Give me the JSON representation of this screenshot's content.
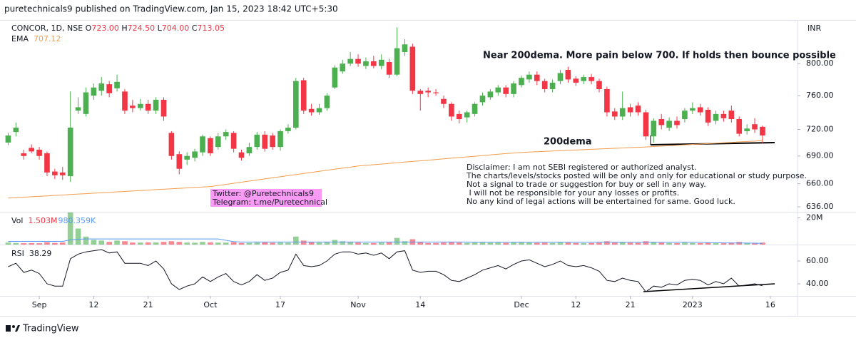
{
  "header": "puretechnicals9 published on TradingView.com, Jan 15, 2023 18:42 UTC+5:30",
  "footer": "TradingView",
  "currency": "INR",
  "annotations": {
    "note": "Near 200dema. More pain below 700. If holds then bounce possible",
    "ema_label": "200dema",
    "disclaimer": [
      "Disclaimer: I am not SEBI registered or authorized analyst.",
      "The charts/levels/stocks posted will be only and only for educational or study purpose.",
      "Not a signal to trade or suggestion for buy or sell in any way.",
      " I will not be responsible for your any losses or profits.",
      "No any kind of legal actions will be entertained for same. Good luck."
    ],
    "social": [
      "Twitter: @Puretechnicals9",
      "Telegram: t.me/Puretechnical"
    ]
  },
  "chart_data": [
    {
      "type": "candlestick",
      "title": "CONCOR, 1D, NSE",
      "ohlc_labels": [
        {
          "key": "O",
          "value": "723.00"
        },
        {
          "key": "H",
          "value": "724.50"
        },
        {
          "key": "L",
          "value": "704.00"
        },
        {
          "key": "C",
          "value": "713.05"
        }
      ],
      "up_color": "#4caf50",
      "down_color": "#f23645",
      "log": true,
      "grid": false,
      "ylim": [
        631,
        856
      ],
      "yticks": [
        {
          "value": 800,
          "label": "800.00"
        },
        {
          "value": 760,
          "label": "760.00"
        },
        {
          "value": 720,
          "label": "720.00"
        },
        {
          "value": 690,
          "label": "690.00"
        },
        {
          "value": 660,
          "label": "660.00"
        },
        {
          "value": 636,
          "label": "636.00"
        }
      ],
      "xlim": [
        -1.05,
        101.5
      ],
      "xticks": [
        {
          "value": 4,
          "label": "Sep"
        },
        {
          "value": 11,
          "label": "12"
        },
        {
          "value": 18,
          "label": "21"
        },
        {
          "value": 26,
          "label": "Oct"
        },
        {
          "value": 35,
          "label": "17"
        },
        {
          "value": 45,
          "label": "Nov"
        },
        {
          "value": 53,
          "label": "14"
        },
        {
          "value": 66,
          "label": "Dec"
        },
        {
          "value": 73,
          "label": "12"
        },
        {
          "value": 80,
          "label": "21"
        },
        {
          "value": 88,
          "label": "2023"
        },
        {
          "value": 98,
          "label": "16"
        }
      ],
      "open": [
        705,
        717,
        693,
        699,
        697,
        693,
        673,
        672,
        668,
        742,
        738,
        760,
        766,
        774,
        769,
        765,
        748,
        745,
        750,
        742,
        755,
        716,
        692,
        686,
        688,
        694,
        710,
        700,
        712,
        716,
        694,
        693,
        700,
        714,
        713,
        700,
        718,
        722,
        779,
        744,
        740,
        745,
        770,
        790,
        800,
        806,
        797,
        803,
        797,
        802,
        786,
        815,
        822,
        766,
        766,
        764,
        756,
        750,
        738,
        734,
        738,
        752,
        758,
        764,
        770,
        762,
        773,
        780,
        786,
        778,
        768,
        778,
        792,
        781,
        778,
        783,
        778,
        768,
        741,
        735,
        746,
        748,
        740,
        712,
        732,
        722,
        730,
        732,
        742,
        746,
        743,
        730,
        738,
        742,
        732,
        718,
        726,
        723
      ],
      "high": [
        716,
        728,
        697,
        703,
        700,
        695,
        676,
        678,
        765,
        758,
        770,
        775,
        783,
        778,
        786,
        768,
        755,
        756,
        755,
        758,
        758,
        718,
        695,
        694,
        698,
        714,
        712,
        716,
        720,
        718,
        697,
        705,
        717,
        718,
        716,
        720,
        726,
        782,
        782,
        750,
        750,
        763,
        798,
        805,
        815,
        812,
        808,
        810,
        812,
        806,
        848,
        832,
        826,
        768,
        770,
        768,
        760,
        752,
        742,
        742,
        752,
        764,
        768,
        773,
        773,
        778,
        785,
        790,
        790,
        781,
        780,
        792,
        796,
        784,
        786,
        787,
        781,
        771,
        745,
        765,
        750,
        752,
        743,
        733,
        738,
        734,
        735,
        745,
        752,
        750,
        746,
        742,
        742,
        748,
        735,
        726,
        733,
        724.5
      ],
      "low": [
        702,
        712,
        686,
        693,
        686,
        668,
        665,
        664,
        662,
        738,
        735,
        755,
        760,
        758,
        765,
        738,
        740,
        742,
        738,
        738,
        730,
        686,
        670,
        680,
        684,
        690,
        690,
        697,
        708,
        694,
        685,
        690,
        697,
        695,
        697,
        696,
        715,
        720,
        738,
        736,
        737,
        742,
        768,
        787,
        797,
        796,
        793,
        794,
        793,
        782,
        784,
        810,
        762,
        742,
        758,
        760,
        745,
        730,
        727,
        728,
        735,
        748,
        755,
        760,
        758,
        758,
        770,
        776,
        773,
        764,
        764,
        774,
        776,
        772,
        774,
        774,
        764,
        735,
        731,
        731,
        735,
        736,
        708,
        705,
        720,
        718,
        721,
        728,
        738,
        736,
        724,
        726,
        729,
        728,
        712,
        714,
        716,
        704
      ],
      "close": [
        713,
        722,
        690,
        695,
        690,
        672,
        669,
        669,
        722,
        746,
        764,
        770,
        775,
        763,
        777,
        742,
        745,
        750,
        742,
        755,
        735,
        690,
        676,
        690,
        695,
        712,
        693,
        712,
        717,
        698,
        688,
        700,
        714,
        698,
        700,
        718,
        722,
        778,
        742,
        740,
        745,
        760,
        795,
        800,
        806,
        800,
        803,
        797,
        805,
        786,
        820,
        825,
        766,
        762,
        764,
        763,
        750,
        735,
        732,
        740,
        750,
        760,
        765,
        770,
        762,
        775,
        782,
        786,
        778,
        768,
        776,
        788,
        780,
        776,
        783,
        778,
        768,
        740,
        735,
        745,
        740,
        740,
        712,
        730,
        725,
        730,
        725,
        742,
        745,
        740,
        728,
        738,
        733,
        732,
        715,
        721,
        720,
        713.05
      ],
      "overlay": {
        "name": "EMA",
        "color": "#f59d4b",
        "values": [
          645,
          645.5,
          645.9,
          646.4,
          646.8,
          647.3,
          647.8,
          648.2,
          648.7,
          649.2,
          649.6,
          650.1,
          650.5,
          651,
          651.5,
          651.9,
          652.4,
          652.8,
          653.3,
          653.8,
          654.2,
          654.7,
          655.2,
          655.6,
          656.1,
          656.5,
          657,
          658.2,
          659.3,
          660.5,
          661.6,
          662.8,
          664,
          665.1,
          666.3,
          667.4,
          668.6,
          669.7,
          670.9,
          672.1,
          673.2,
          674.4,
          675.5,
          676.7,
          677.8,
          679,
          679.7,
          680.4,
          681.1,
          681.9,
          682.6,
          683.3,
          684,
          684.7,
          685.4,
          686.1,
          686.9,
          687.6,
          688.3,
          689,
          689.7,
          690.4,
          691.1,
          691.9,
          692.6,
          693.3,
          694,
          694.4,
          694.8,
          695.1,
          695.5,
          695.9,
          696.3,
          696.6,
          697,
          697.4,
          697.8,
          698.1,
          698.5,
          698.9,
          699.3,
          699.6,
          700,
          700.5,
          701,
          701.4,
          701.9,
          702.4,
          702.9,
          703.3,
          703.8,
          704.3,
          704.8,
          705.2,
          705.7,
          706.2,
          706.6,
          707.12
        ]
      }
    },
    {
      "type": "bar",
      "title": "Vol",
      "value_label": "1.503M",
      "ylim": [
        0,
        24
      ],
      "yticks": [
        {
          "value": 20,
          "label": "20M"
        }
      ],
      "values": [
        1.5,
        1.2,
        1.0,
        1.1,
        1.0,
        1.8,
        1.2,
        1.5,
        24,
        12,
        6,
        3.5,
        3,
        2,
        3,
        2.5,
        1.5,
        1.5,
        1.6,
        1.6,
        2,
        2.5,
        2,
        1.5,
        1.4,
        2,
        1.6,
        1.5,
        1.5,
        1.8,
        1.2,
        1.3,
        1.5,
        1.6,
        1.4,
        1.5,
        1.4,
        6,
        3,
        2,
        1.5,
        2,
        3.5,
        2.5,
        2,
        1.5,
        1.2,
        1.2,
        1.5,
        1.6,
        5,
        2.5,
        4,
        2,
        1.2,
        1.2,
        1.5,
        2,
        1.5,
        1.3,
        1.5,
        1.6,
        1.4,
        1.5,
        1.3,
        1.8,
        1.7,
        1.5,
        1.3,
        1.4,
        1.2,
        1.6,
        1.5,
        1.2,
        1.1,
        1.2,
        1.4,
        2.5,
        1.5,
        2,
        1.4,
        1.3,
        2.5,
        2,
        1.4,
        1.2,
        1.1,
        1.5,
        1.2,
        1.1,
        1.4,
        1.1,
        1.0,
        1.5,
        2,
        1.2,
        1.3,
        1.503
      ],
      "ma": {
        "color": "#5b9cf6",
        "value_label": "980.359K",
        "values": [
          2.4,
          2.4,
          2.4,
          2.4,
          2.4,
          2.4,
          2.4,
          2.4,
          3.5,
          4.0,
          4.2,
          4.2,
          4.2,
          4.2,
          4.2,
          4.2,
          4.2,
          4.2,
          4.2,
          4.2,
          4.2,
          4.2,
          4.2,
          4.2,
          4.2,
          4.2,
          4.2,
          4.2,
          3.2,
          2.2,
          1.9,
          1.9,
          1.9,
          1.9,
          1.9,
          1.9,
          1.9,
          1.9,
          1.9,
          1.9,
          1.9,
          1.9,
          1.9,
          1.9,
          1.9,
          1.9,
          1.9,
          1.9,
          1.9,
          1.9,
          1.9,
          1.9,
          1.9,
          1.9,
          1.9,
          1.9,
          1.9,
          1.9,
          1.9,
          1.9,
          1.7,
          1.7,
          1.7,
          1.7,
          1.7,
          1.7,
          1.7,
          1.7,
          1.7,
          1.7,
          1.7,
          1.7,
          1.7,
          1.7,
          1.7,
          1.7,
          1.7,
          1.7,
          1.7,
          1.7,
          1.7,
          1.7,
          1.7,
          1.7,
          1.7,
          1.7,
          1.7,
          1.7,
          1.7,
          1.7,
          1.5,
          1.4,
          1.3,
          1.2,
          1.15,
          1.1,
          1.05,
          0.980359
        ]
      }
    },
    {
      "type": "line",
      "title": "RSI",
      "color": "#131722",
      "ylim": [
        29.4,
        73.1
      ],
      "yticks": [
        {
          "value": 60,
          "label": "60.00"
        },
        {
          "value": 40,
          "label": "40.00"
        }
      ],
      "values": [
        55,
        58,
        50,
        52,
        49,
        40,
        38,
        38,
        62,
        66,
        68,
        69,
        70,
        67,
        68,
        58,
        58,
        58,
        56,
        60,
        53,
        40,
        35,
        38,
        40,
        46,
        42,
        46,
        49,
        42,
        39,
        42,
        48,
        43,
        45,
        50,
        52,
        66,
        56,
        55,
        56,
        60,
        66,
        68,
        68,
        66,
        67,
        65,
        67,
        62,
        68,
        69,
        52,
        50,
        51,
        51,
        48,
        43,
        42,
        45,
        48,
        52,
        54,
        56,
        53,
        57,
        60,
        61,
        58,
        55,
        57,
        60,
        56,
        55,
        56,
        54,
        51,
        43,
        42,
        45,
        43,
        42,
        33,
        38,
        37,
        40,
        39,
        43,
        44,
        43,
        39,
        42,
        40,
        45,
        38,
        39,
        40,
        38.29
      ]
    }
  ]
}
